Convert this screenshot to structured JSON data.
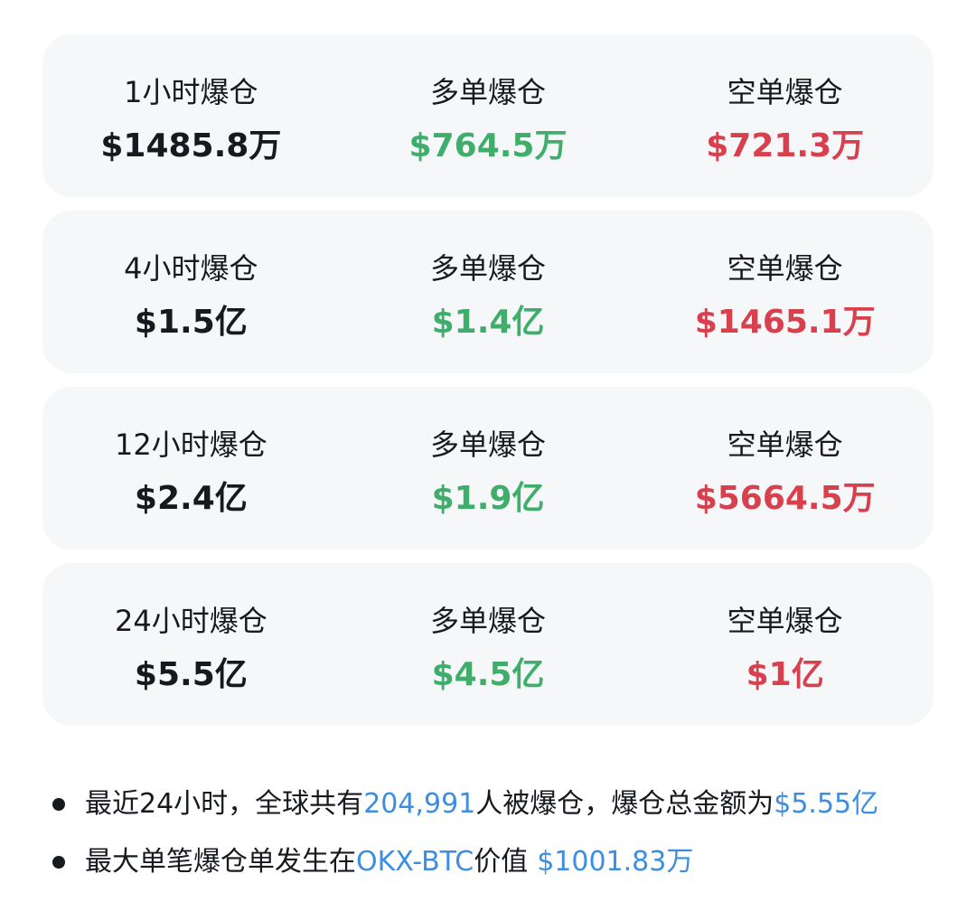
{
  "cards": [
    {
      "cells": [
        {
          "label": "1小时爆仓",
          "value": "$1485.8万"
        },
        {
          "label": "多单爆仓",
          "value": "$764.5万"
        },
        {
          "label": "空单爆仓",
          "value": "$721.3万"
        }
      ]
    },
    {
      "cells": [
        {
          "label": "4小时爆仓",
          "value": "$1.5亿"
        },
        {
          "label": "多单爆仓",
          "value": "$1.4亿"
        },
        {
          "label": "空单爆仓",
          "value": "$1465.1万"
        }
      ]
    },
    {
      "cells": [
        {
          "label": "12小时爆仓",
          "value": "$2.4亿"
        },
        {
          "label": "多单爆仓",
          "value": "$1.9亿"
        },
        {
          "label": "空单爆仓",
          "value": "$5664.5万"
        }
      ]
    },
    {
      "cells": [
        {
          "label": "24小时爆仓",
          "value": "$5.5亿"
        },
        {
          "label": "多单爆仓",
          "value": "$4.5亿"
        },
        {
          "label": "空单爆仓",
          "value": "$1亿"
        }
      ]
    }
  ],
  "bullets": [
    [
      "最近24小时，全球共有",
      "204,991",
      "人被爆仓，爆仓总金额为",
      "$5.55亿"
    ],
    [
      "最大单笔爆仓单发生在",
      "OKX-BTC",
      "价值",
      "$1001.83万"
    ]
  ]
}
